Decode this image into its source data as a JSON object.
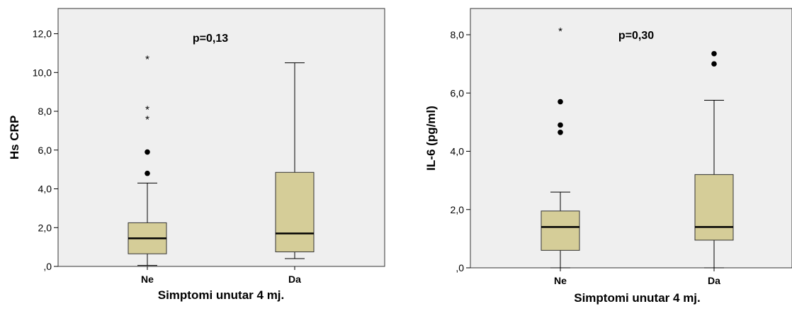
{
  "chart_data": [
    {
      "type": "box",
      "ylabel": "Hs CRP",
      "xlabel": "Simptomi unutar 4 mj.",
      "annotation": "p=0,13",
      "ylim": [
        0,
        13.3
      ],
      "yticks": [
        0,
        2,
        4,
        6,
        8,
        10,
        12
      ],
      "ytick_labels": [
        ",0",
        "2,0",
        "4,0",
        "6,0",
        "8,0",
        "10,0",
        "12,0"
      ],
      "categories": [
        "Ne",
        "Da"
      ],
      "boxes": [
        {
          "category": "Ne",
          "whisker_low": 0.05,
          "q1": 0.65,
          "median": 1.45,
          "q3": 2.25,
          "whisker_high": 4.3,
          "outliers": [
            4.8,
            5.9
          ],
          "extremes": [
            7.7,
            8.2,
            10.8
          ]
        },
        {
          "category": "Da",
          "whisker_low": 0.4,
          "q1": 0.75,
          "median": 1.7,
          "q3": 4.85,
          "whisker_high": 10.5,
          "outliers": [],
          "extremes": []
        }
      ]
    },
    {
      "type": "box",
      "ylabel": "IL-6 (pg/ml)",
      "xlabel": "Simptomi unutar 4 mj.",
      "annotation": "p=0,30",
      "ylim": [
        0,
        8.9
      ],
      "yticks": [
        0,
        2,
        4,
        6,
        8
      ],
      "ytick_labels": [
        ",0",
        "2,0",
        "4,0",
        "6,0",
        "8,0"
      ],
      "categories": [
        "Ne",
        "Da"
      ],
      "boxes": [
        {
          "category": "Ne",
          "whisker_low": 0.0,
          "q1": 0.6,
          "median": 1.4,
          "q3": 1.95,
          "whisker_high": 2.6,
          "outliers": [
            4.65,
            4.9,
            5.7
          ],
          "extremes": [
            8.2
          ]
        },
        {
          "category": "Da",
          "whisker_low": 0.0,
          "q1": 0.95,
          "median": 1.4,
          "q3": 3.2,
          "whisker_high": 5.75,
          "outliers": [
            7.0,
            7.35
          ],
          "extremes": []
        }
      ]
    }
  ]
}
